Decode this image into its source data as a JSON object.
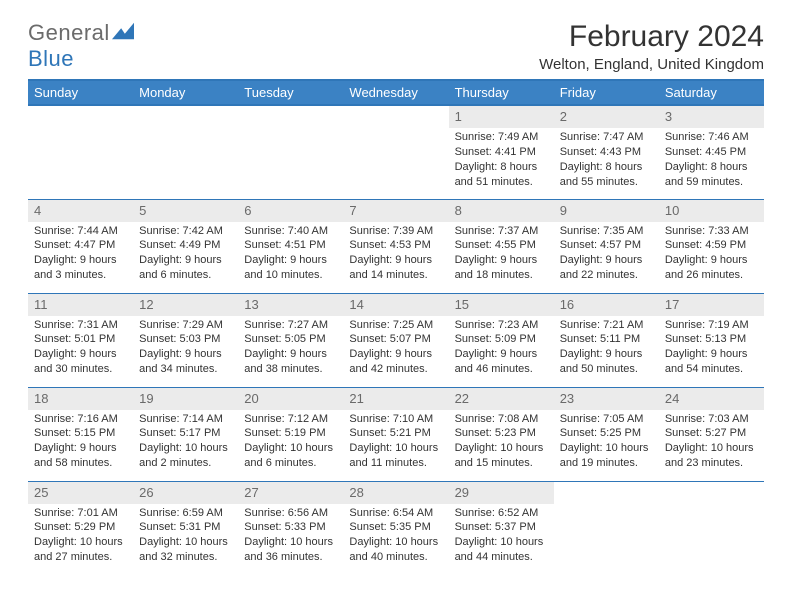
{
  "logo": {
    "general": "General",
    "blue": "Blue"
  },
  "header": {
    "title": "February 2024",
    "location": "Welton, England, United Kingdom"
  },
  "columns": [
    "Sunday",
    "Monday",
    "Tuesday",
    "Wednesday",
    "Thursday",
    "Friday",
    "Saturday"
  ],
  "colors": {
    "header_bg": "#3b82c4",
    "header_border": "#2f76b8",
    "daynum_bg": "#ebebeb",
    "text": "#333333",
    "muted": "#6a6a6a"
  },
  "weeks": [
    [
      null,
      null,
      null,
      null,
      {
        "n": "1",
        "sr": "7:49 AM",
        "ss": "4:41 PM",
        "dl": "8 hours and 51 minutes."
      },
      {
        "n": "2",
        "sr": "7:47 AM",
        "ss": "4:43 PM",
        "dl": "8 hours and 55 minutes."
      },
      {
        "n": "3",
        "sr": "7:46 AM",
        "ss": "4:45 PM",
        "dl": "8 hours and 59 minutes."
      }
    ],
    [
      {
        "n": "4",
        "sr": "7:44 AM",
        "ss": "4:47 PM",
        "dl": "9 hours and 3 minutes."
      },
      {
        "n": "5",
        "sr": "7:42 AM",
        "ss": "4:49 PM",
        "dl": "9 hours and 6 minutes."
      },
      {
        "n": "6",
        "sr": "7:40 AM",
        "ss": "4:51 PM",
        "dl": "9 hours and 10 minutes."
      },
      {
        "n": "7",
        "sr": "7:39 AM",
        "ss": "4:53 PM",
        "dl": "9 hours and 14 minutes."
      },
      {
        "n": "8",
        "sr": "7:37 AM",
        "ss": "4:55 PM",
        "dl": "9 hours and 18 minutes."
      },
      {
        "n": "9",
        "sr": "7:35 AM",
        "ss": "4:57 PM",
        "dl": "9 hours and 22 minutes."
      },
      {
        "n": "10",
        "sr": "7:33 AM",
        "ss": "4:59 PM",
        "dl": "9 hours and 26 minutes."
      }
    ],
    [
      {
        "n": "11",
        "sr": "7:31 AM",
        "ss": "5:01 PM",
        "dl": "9 hours and 30 minutes."
      },
      {
        "n": "12",
        "sr": "7:29 AM",
        "ss": "5:03 PM",
        "dl": "9 hours and 34 minutes."
      },
      {
        "n": "13",
        "sr": "7:27 AM",
        "ss": "5:05 PM",
        "dl": "9 hours and 38 minutes."
      },
      {
        "n": "14",
        "sr": "7:25 AM",
        "ss": "5:07 PM",
        "dl": "9 hours and 42 minutes."
      },
      {
        "n": "15",
        "sr": "7:23 AM",
        "ss": "5:09 PM",
        "dl": "9 hours and 46 minutes."
      },
      {
        "n": "16",
        "sr": "7:21 AM",
        "ss": "5:11 PM",
        "dl": "9 hours and 50 minutes."
      },
      {
        "n": "17",
        "sr": "7:19 AM",
        "ss": "5:13 PM",
        "dl": "9 hours and 54 minutes."
      }
    ],
    [
      {
        "n": "18",
        "sr": "7:16 AM",
        "ss": "5:15 PM",
        "dl": "9 hours and 58 minutes."
      },
      {
        "n": "19",
        "sr": "7:14 AM",
        "ss": "5:17 PM",
        "dl": "10 hours and 2 minutes."
      },
      {
        "n": "20",
        "sr": "7:12 AM",
        "ss": "5:19 PM",
        "dl": "10 hours and 6 minutes."
      },
      {
        "n": "21",
        "sr": "7:10 AM",
        "ss": "5:21 PM",
        "dl": "10 hours and 11 minutes."
      },
      {
        "n": "22",
        "sr": "7:08 AM",
        "ss": "5:23 PM",
        "dl": "10 hours and 15 minutes."
      },
      {
        "n": "23",
        "sr": "7:05 AM",
        "ss": "5:25 PM",
        "dl": "10 hours and 19 minutes."
      },
      {
        "n": "24",
        "sr": "7:03 AM",
        "ss": "5:27 PM",
        "dl": "10 hours and 23 minutes."
      }
    ],
    [
      {
        "n": "25",
        "sr": "7:01 AM",
        "ss": "5:29 PM",
        "dl": "10 hours and 27 minutes."
      },
      {
        "n": "26",
        "sr": "6:59 AM",
        "ss": "5:31 PM",
        "dl": "10 hours and 32 minutes."
      },
      {
        "n": "27",
        "sr": "6:56 AM",
        "ss": "5:33 PM",
        "dl": "10 hours and 36 minutes."
      },
      {
        "n": "28",
        "sr": "6:54 AM",
        "ss": "5:35 PM",
        "dl": "10 hours and 40 minutes."
      },
      {
        "n": "29",
        "sr": "6:52 AM",
        "ss": "5:37 PM",
        "dl": "10 hours and 44 minutes."
      },
      null,
      null
    ]
  ],
  "labels": {
    "sunrise": "Sunrise: ",
    "sunset": "Sunset: ",
    "daylight": "Daylight: "
  }
}
